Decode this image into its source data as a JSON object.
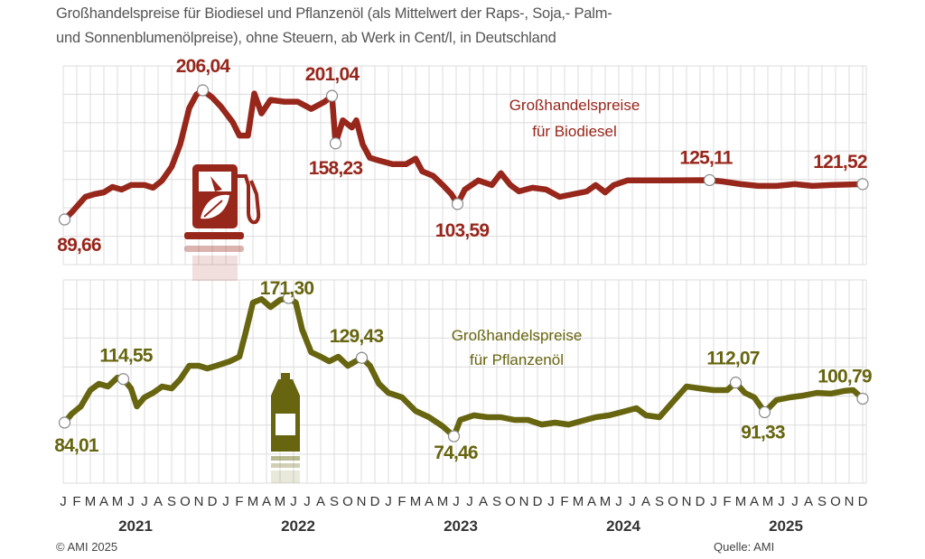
{
  "title": {
    "line1": "Großhandelspreise für Biodiesel und Pflanzenöl (als Mittelwert der Raps-, Soja,- Palm-",
    "line2": "und Sonnenblumenölpreise), ohne Steuern, ab Werk in Cent/l, in Deutschland"
  },
  "footer": {
    "copyright": "© AMI 2025",
    "source": "Quelle: AMI"
  },
  "colors": {
    "biodiesel": "#97261b",
    "pflanzenoel": "#67650f",
    "grid": "#dcdcdc"
  },
  "icons": {
    "biodiesel": "fuel-pump-leaf-icon",
    "pflanzenoel": "oil-bottle-icon"
  },
  "chart_data": [
    {
      "type": "line",
      "unit": "Cent/l",
      "series": [
        {
          "name_line1": "Großhandelspreise",
          "name_line2": "für Biodiesel",
          "points": [
            [
              "2021-01-04",
              89.66
            ],
            [
              "2021-01-20",
              96.2
            ],
            [
              "2021-02-20",
              110.0
            ],
            [
              "2021-03-10",
              112.5
            ],
            [
              "2021-04-01",
              114.1
            ],
            [
              "2021-04-20",
              119.0
            ],
            [
              "2021-05-10",
              116.6
            ],
            [
              "2021-06-01",
              120.7
            ],
            [
              "2021-07-01",
              120.7
            ],
            [
              "2021-07-20",
              118.2
            ],
            [
              "2021-08-10",
              124.8
            ],
            [
              "2021-09-01",
              137.0
            ],
            [
              "2021-09-20",
              157.4
            ],
            [
              "2021-10-10",
              190.0
            ],
            [
              "2021-10-26",
              202.2
            ],
            [
              "2021-11-10",
              206.04
            ],
            [
              "2021-12-01",
              199.5
            ],
            [
              "2021-12-20",
              191.4
            ],
            [
              "2022-01-16",
              177.5
            ],
            [
              "2022-02-01",
              165.3
            ],
            [
              "2022-02-20",
              165.3
            ],
            [
              "2022-03-04",
              203.1
            ],
            [
              "2022-03-20",
              185.2
            ],
            [
              "2022-04-10",
              197.4
            ],
            [
              "2022-05-10",
              195.8
            ],
            [
              "2022-06-10",
              195.8
            ],
            [
              "2022-07-10",
              189.3
            ],
            [
              "2022-08-10",
              195.8
            ],
            [
              "2022-08-26",
              201.04
            ],
            [
              "2022-09-04",
              158.23
            ],
            [
              "2022-09-20",
              179.0
            ],
            [
              "2022-10-10",
              172.5
            ],
            [
              "2022-10-20",
              179.0
            ],
            [
              "2022-11-04",
              157.4
            ],
            [
              "2022-11-20",
              145.2
            ],
            [
              "2022-12-10",
              142.8
            ],
            [
              "2023-01-10",
              139.5
            ],
            [
              "2023-02-10",
              139.5
            ],
            [
              "2023-03-01",
              144.4
            ],
            [
              "2023-03-16",
              133.0
            ],
            [
              "2023-04-10",
              129.0
            ],
            [
              "2023-05-01",
              120.8
            ],
            [
              "2023-05-20",
              112.7
            ],
            [
              "2023-06-04",
              103.59
            ],
            [
              "2023-06-20",
              116.5
            ],
            [
              "2023-07-20",
              124.8
            ],
            [
              "2023-08-20",
              120.7
            ],
            [
              "2023-09-10",
              131.3
            ],
            [
              "2023-10-01",
              120.7
            ],
            [
              "2023-10-20",
              115.0
            ],
            [
              "2023-11-20",
              118.2
            ],
            [
              "2023-12-20",
              116.6
            ],
            [
              "2024-01-20",
              110.0
            ],
            [
              "2024-02-20",
              112.5
            ],
            [
              "2024-03-20",
              114.9
            ],
            [
              "2024-04-10",
              120.7
            ],
            [
              "2024-05-01",
              114.1
            ],
            [
              "2024-05-20",
              120.7
            ],
            [
              "2024-06-20",
              124.8
            ],
            [
              "2024-09-20",
              124.8
            ],
            [
              "2024-12-22",
              125.11
            ],
            [
              "2025-01-20",
              123.9
            ],
            [
              "2025-03-01",
              121.5
            ],
            [
              "2025-04-10",
              119.9
            ],
            [
              "2025-05-20",
              119.9
            ],
            [
              "2025-07-01",
              121.5
            ],
            [
              "2025-08-10",
              119.9
            ],
            [
              "2025-09-20",
              120.7
            ],
            [
              "2025-12-01",
              121.52
            ]
          ]
        }
      ],
      "annotations": [
        {
          "text": "89,66",
          "date": "2021-01-04",
          "value": 89.66
        },
        {
          "text": "206,04",
          "date": "2021-11-10",
          "value": 206.04
        },
        {
          "text": "201,04",
          "date": "2022-08-26",
          "value": 201.04
        },
        {
          "text": "158,23",
          "date": "2022-09-04",
          "value": 158.23
        },
        {
          "text": "103,59",
          "date": "2023-06-04",
          "value": 103.59
        },
        {
          "text": "125,11",
          "date": "2024-12-22",
          "value": 125.11
        },
        {
          "text": "121,52",
          "date": "2025-12-01",
          "value": 121.52
        }
      ],
      "ylim": [
        49,
        228
      ],
      "grid": true
    },
    {
      "type": "line",
      "unit": "Cent/l",
      "series": [
        {
          "name_line1": "Großhandelspreise",
          "name_line2": "für Pflanzenöl",
          "points": [
            [
              "2021-01-04",
              84.01
            ],
            [
              "2021-01-20",
              90.3
            ],
            [
              "2021-02-10",
              95.4
            ],
            [
              "2021-03-01",
              106.8
            ],
            [
              "2021-03-20",
              111.2
            ],
            [
              "2021-04-10",
              109.3
            ],
            [
              "2021-05-01",
              115.6
            ],
            [
              "2021-05-14",
              114.55
            ],
            [
              "2021-06-01",
              108.0
            ],
            [
              "2021-06-14",
              95.4
            ],
            [
              "2021-07-01",
              101.7
            ],
            [
              "2021-07-20",
              104.9
            ],
            [
              "2021-08-10",
              109.3
            ],
            [
              "2021-09-01",
              108.0
            ],
            [
              "2021-09-20",
              114.4
            ],
            [
              "2021-10-10",
              123.9
            ],
            [
              "2021-11-01",
              123.9
            ],
            [
              "2021-11-20",
              122.0
            ],
            [
              "2021-12-10",
              123.9
            ],
            [
              "2022-01-10",
              127.0
            ],
            [
              "2022-02-01",
              130.2
            ],
            [
              "2022-02-14",
              146.0
            ],
            [
              "2022-03-01",
              168.1
            ],
            [
              "2022-03-20",
              170.6
            ],
            [
              "2022-04-10",
              165.0
            ],
            [
              "2022-05-01",
              170.0
            ],
            [
              "2022-05-20",
              171.3
            ],
            [
              "2022-06-06",
              168.1
            ],
            [
              "2022-06-20",
              149.2
            ],
            [
              "2022-07-10",
              133.3
            ],
            [
              "2022-08-01",
              130.2
            ],
            [
              "2022-08-20",
              127.0
            ],
            [
              "2022-09-10",
              130.2
            ],
            [
              "2022-10-01",
              123.9
            ],
            [
              "2022-11-02",
              129.43
            ],
            [
              "2022-11-20",
              123.9
            ],
            [
              "2022-12-10",
              111.2
            ],
            [
              "2023-01-01",
              104.9
            ],
            [
              "2023-02-01",
              101.7
            ],
            [
              "2023-03-01",
              92.2
            ],
            [
              "2023-04-01",
              87.8
            ],
            [
              "2023-05-01",
              81.5
            ],
            [
              "2023-05-26",
              74.46
            ],
            [
              "2023-06-10",
              85.9
            ],
            [
              "2023-07-10",
              89.1
            ],
            [
              "2023-08-10",
              87.8
            ],
            [
              "2023-09-10",
              87.8
            ],
            [
              "2023-10-10",
              85.9
            ],
            [
              "2023-11-10",
              85.9
            ],
            [
              "2023-12-10",
              82.7
            ],
            [
              "2024-01-10",
              84.0
            ],
            [
              "2024-02-10",
              82.7
            ],
            [
              "2024-03-10",
              85.3
            ],
            [
              "2024-04-10",
              87.8
            ],
            [
              "2024-05-10",
              89.1
            ],
            [
              "2024-06-10",
              91.6
            ],
            [
              "2024-07-10",
              94.1
            ],
            [
              "2024-08-01",
              89.1
            ],
            [
              "2024-09-01",
              87.8
            ],
            [
              "2024-10-01",
              98.6
            ],
            [
              "2024-11-01",
              109.3
            ],
            [
              "2024-12-01",
              108.0
            ],
            [
              "2025-01-01",
              106.8
            ],
            [
              "2025-02-01",
              106.8
            ],
            [
              "2025-02-20",
              112.07
            ],
            [
              "2025-03-10",
              104.9
            ],
            [
              "2025-04-01",
              101.7
            ],
            [
              "2025-04-24",
              91.33
            ],
            [
              "2025-05-20",
              99.8
            ],
            [
              "2025-06-20",
              101.7
            ],
            [
              "2025-07-20",
              103.0
            ],
            [
              "2025-08-20",
              104.9
            ],
            [
              "2025-09-20",
              104.3
            ],
            [
              "2025-10-20",
              106.2
            ],
            [
              "2025-11-10",
              106.8
            ],
            [
              "2025-12-01",
              100.79
            ]
          ]
        }
      ],
      "annotations": [
        {
          "text": "84,01",
          "date": "2021-01-04",
          "value": 84.01
        },
        {
          "text": "114,55",
          "date": "2021-05-14",
          "value": 114.55
        },
        {
          "text": "171,30",
          "date": "2022-05-20",
          "value": 171.3
        },
        {
          "text": "129,43",
          "date": "2022-11-02",
          "value": 129.43
        },
        {
          "text": "74,46",
          "date": "2023-05-26",
          "value": 74.46
        },
        {
          "text": "112,07",
          "date": "2025-02-20",
          "value": 112.07
        },
        {
          "text": "91,33",
          "date": "2025-04-24",
          "value": 91.33
        },
        {
          "text": "100,79",
          "date": "2025-12-01",
          "value": 100.79
        }
      ],
      "ylim": [
        41.6,
        184
      ],
      "grid": true
    }
  ],
  "x_axis": {
    "month_labels": [
      "J",
      "F",
      "M",
      "A",
      "M",
      "J",
      "J",
      "A",
      "S",
      "O",
      "N",
      "D"
    ],
    "years": [
      "2021",
      "2022",
      "2023",
      "2024",
      "2025"
    ]
  }
}
